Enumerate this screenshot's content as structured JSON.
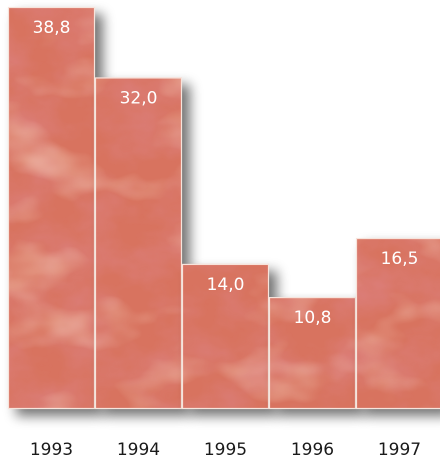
{
  "chart_data": {
    "type": "bar",
    "categories": [
      "1993",
      "1994",
      "1995",
      "1996",
      "1997"
    ],
    "values": [
      38.8,
      32.0,
      14.0,
      10.8,
      16.5
    ],
    "value_labels": [
      "38,8",
      "32,0",
      "14,0",
      "10,8",
      "16,5"
    ],
    "title": "",
    "xlabel": "",
    "ylabel": "",
    "ylim": [
      0,
      38.8
    ],
    "grid": false,
    "legend": "none",
    "colors": {
      "bar_base": "#d8735f",
      "bar_dark": "#b9343a",
      "bar_light": "#f0b08f",
      "bar_border": "#f7e4dc",
      "shadow": "#8f8f8f",
      "label_text": "#ffffff",
      "tick_text": "#1a1a1a"
    }
  }
}
